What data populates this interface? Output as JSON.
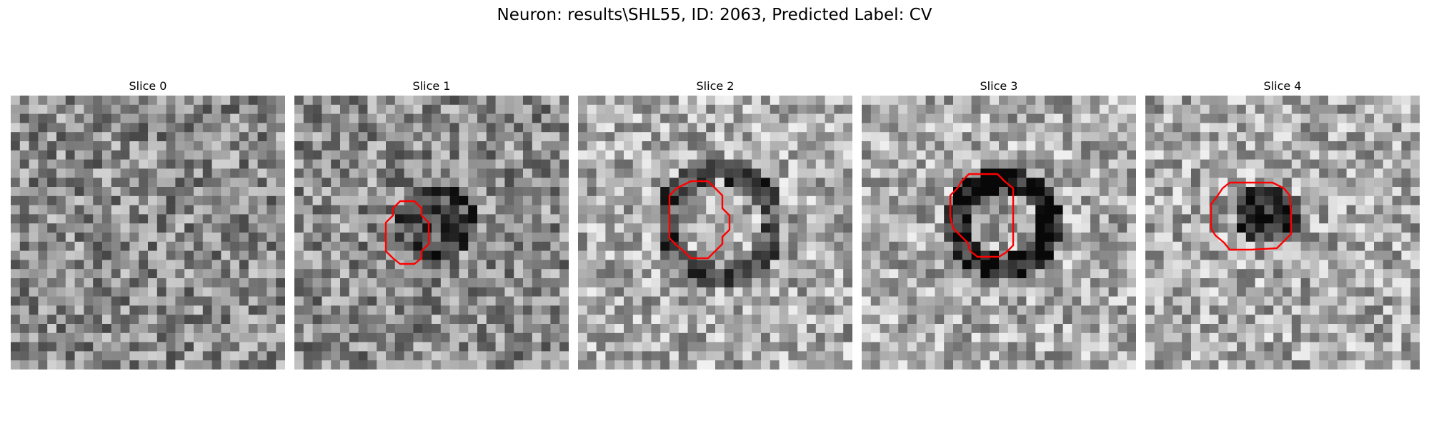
{
  "figure": {
    "title": "Neuron: results\\SHL55, ID: 2063, Predicted Label: CV"
  },
  "panels": [
    {
      "title": "Slice 0",
      "has_contour": false
    },
    {
      "title": "Slice 1",
      "has_contour": true
    },
    {
      "title": "Slice 2",
      "has_contour": true
    },
    {
      "title": "Slice 3",
      "has_contour": true
    },
    {
      "title": "Slice 4",
      "has_contour": true
    }
  ],
  "colors": {
    "contour": "#ff0000",
    "colormap": "gray"
  }
}
